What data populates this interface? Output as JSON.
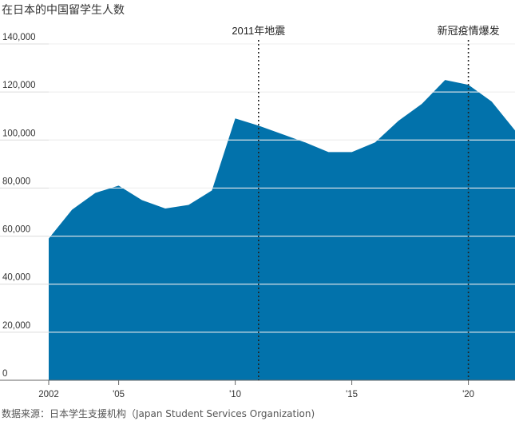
{
  "chart_data": {
    "type": "area",
    "title": "在日本的中国留学生人数",
    "source": "数据来源：日本学生支援机构（Japan Student Services Organization)",
    "xlabel": "",
    "ylabel": "",
    "xlim": [
      2002,
      2022
    ],
    "ylim": [
      0,
      140000
    ],
    "y_ticks": [
      0,
      20000,
      40000,
      60000,
      80000,
      100000,
      120000,
      140000
    ],
    "y_tick_labels": [
      "0",
      "20,000",
      "40,000",
      "60,000",
      "80,000",
      "100,000",
      "120,000",
      "140,000"
    ],
    "x_ticks": [
      2002,
      2005,
      2010,
      2015,
      2020
    ],
    "x_tick_labels": [
      "2002",
      "'05",
      "'10",
      "'15",
      "'20"
    ],
    "grid": true,
    "color": "#0272ab",
    "x": [
      2002,
      2003,
      2004,
      2005,
      2006,
      2007,
      2008,
      2009,
      2010,
      2011,
      2012,
      2013,
      2014,
      2015,
      2016,
      2017,
      2018,
      2019,
      2020,
      2021,
      2022
    ],
    "values": [
      59000,
      71000,
      78000,
      81000,
      75000,
      71500,
      73000,
      79000,
      109000,
      106000,
      102500,
      99000,
      95000,
      95000,
      99000,
      108000,
      115000,
      125000,
      123000,
      116000,
      104000
    ],
    "annotations": [
      {
        "x": 2011,
        "label": "2011年地震"
      },
      {
        "x": 2020,
        "label": "新冠疫情爆发"
      }
    ]
  }
}
